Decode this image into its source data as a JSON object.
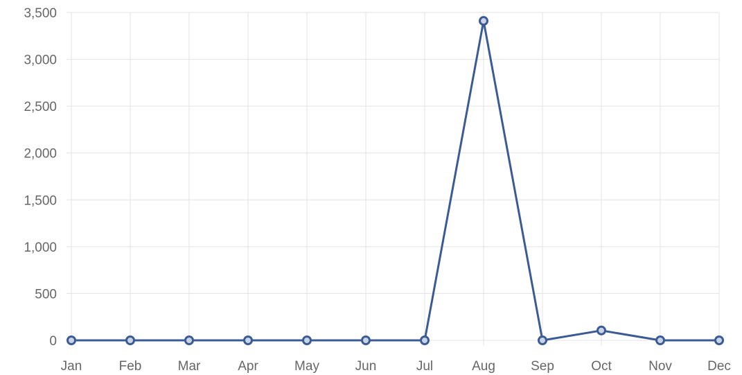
{
  "chart_data": {
    "type": "line",
    "title": "",
    "xlabel": "",
    "ylabel": "",
    "categories": [
      "Jan",
      "Feb",
      "Mar",
      "Apr",
      "May",
      "Jun",
      "Jul",
      "Aug",
      "Sep",
      "Oct",
      "Nov",
      "Dec"
    ],
    "series": [
      {
        "color": "#3b5b94",
        "values": [
          0,
          0,
          0,
          0,
          0,
          0,
          0,
          3410,
          0,
          105,
          0,
          0
        ]
      }
    ],
    "ylim": [
      0,
      3500
    ],
    "yticks": [
      0,
      500,
      1000,
      1500,
      2000,
      2500,
      3000,
      3500
    ],
    "ytick_labels": [
      "0",
      "500",
      "1,000",
      "1,500",
      "2,000",
      "2,500",
      "3,000",
      "3,500"
    ],
    "grid": true,
    "legend": "none",
    "colors": {
      "grid": "#e3e3e3",
      "tick_text": "#666666",
      "series": "#3b5b94"
    }
  }
}
